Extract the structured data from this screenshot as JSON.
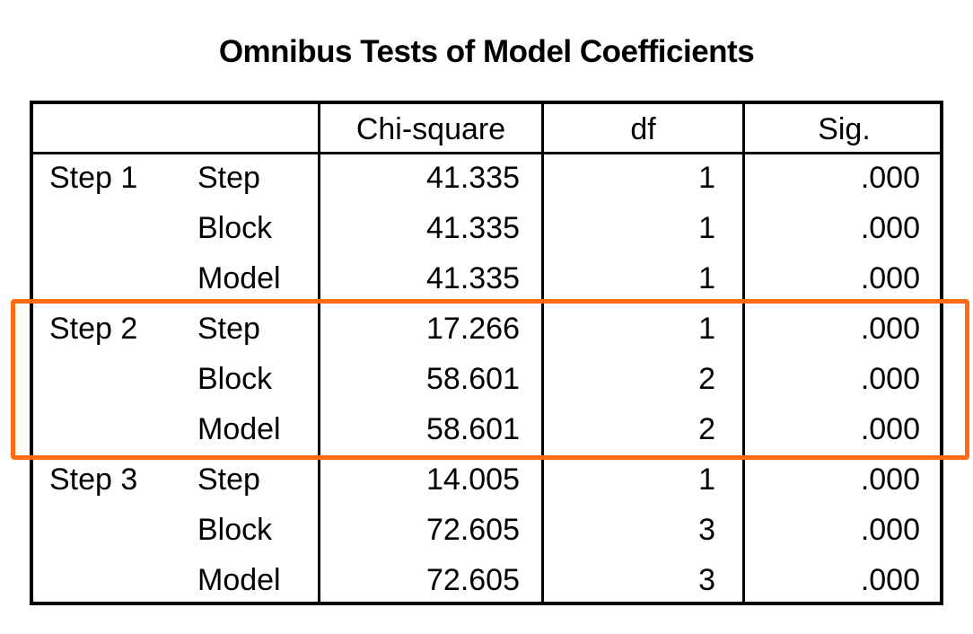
{
  "title": "Omnibus Tests of Model Coefficients",
  "headers": {
    "chi": "Chi-square",
    "df": "df",
    "sig": "Sig."
  },
  "rows": [
    {
      "step": "Step 1",
      "type": "Step",
      "chi": "41.335",
      "df": "1",
      "sig": ".000"
    },
    {
      "step": "",
      "type": "Block",
      "chi": "41.335",
      "df": "1",
      "sig": ".000"
    },
    {
      "step": "",
      "type": "Model",
      "chi": "41.335",
      "df": "1",
      "sig": ".000"
    },
    {
      "step": "Step 2",
      "type": "Step",
      "chi": "17.266",
      "df": "1",
      "sig": ".000"
    },
    {
      "step": "",
      "type": "Block",
      "chi": "58.601",
      "df": "2",
      "sig": ".000"
    },
    {
      "step": "",
      "type": "Model",
      "chi": "58.601",
      "df": "2",
      "sig": ".000"
    },
    {
      "step": "Step 3",
      "type": "Step",
      "chi": "14.005",
      "df": "1",
      "sig": ".000"
    },
    {
      "step": "",
      "type": "Block",
      "chi": "72.605",
      "df": "3",
      "sig": ".000"
    },
    {
      "step": "",
      "type": "Model",
      "chi": "72.605",
      "df": "3",
      "sig": ".000"
    }
  ],
  "highlight_color": "#ff6a13"
}
